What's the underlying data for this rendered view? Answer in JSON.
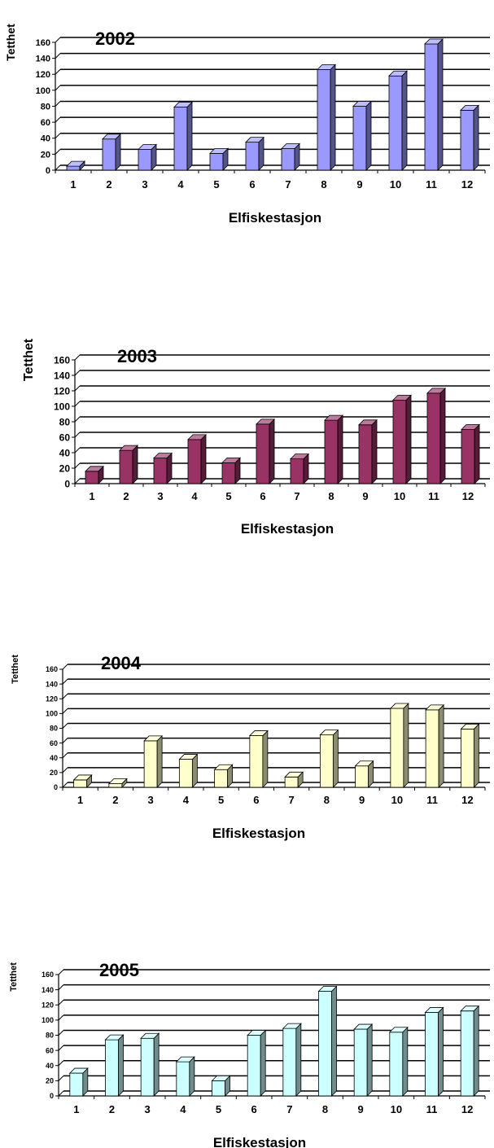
{
  "chart_data": [
    {
      "type": "bar",
      "title": "2002",
      "ylabel": "Tetthet",
      "xlabel": "Elfiskestasjon",
      "ylim": [
        0,
        160
      ],
      "yticks": [
        "0",
        "20",
        "40",
        "60",
        "80",
        "100",
        "120",
        "140",
        "160"
      ],
      "categories": [
        "1",
        "2",
        "3",
        "4",
        "5",
        "6",
        "7",
        "8",
        "9",
        "10",
        "11",
        "12"
      ],
      "values": [
        5,
        39,
        26,
        79,
        21,
        35,
        27,
        126,
        80,
        118,
        158,
        75
      ],
      "grid": true,
      "legend": "none",
      "color": "#9999ff"
    },
    {
      "type": "bar",
      "title": "2003",
      "ylabel": "Tetthet",
      "xlabel": "Elfiskestasjon",
      "ylim": [
        0,
        160
      ],
      "yticks": [
        "0",
        "20",
        "40",
        "60",
        "80",
        "100",
        "120",
        "140",
        "160"
      ],
      "categories": [
        "1",
        "2",
        "3",
        "4",
        "5",
        "6",
        "7",
        "8",
        "9",
        "10",
        "11",
        "12"
      ],
      "values": [
        16,
        43,
        33,
        57,
        27,
        77,
        32,
        82,
        76,
        108,
        117,
        70
      ],
      "grid": true,
      "legend": "none",
      "color": "#993366"
    },
    {
      "type": "bar",
      "title": "2004",
      "ylabel": "Tetthet",
      "xlabel": "Elfiskestasjon",
      "ylim": [
        0,
        160
      ],
      "yticks": [
        "0",
        "20",
        "40",
        "60",
        "80",
        "100",
        "120",
        "140",
        "160"
      ],
      "categories": [
        "1",
        "2",
        "3",
        "4",
        "5",
        "6",
        "7",
        "8",
        "9",
        "10",
        "11",
        "12"
      ],
      "values": [
        10,
        5,
        63,
        38,
        24,
        70,
        14,
        71,
        29,
        107,
        105,
        79
      ],
      "grid": true,
      "legend": "none",
      "color": "#ffffcc"
    },
    {
      "type": "bar",
      "title": "2005",
      "ylabel": "Tetthet",
      "xlabel": "Elfiskestasjon",
      "ylim": [
        0,
        160
      ],
      "yticks": [
        "0",
        "20",
        "40",
        "60",
        "80",
        "100",
        "120",
        "140",
        "160"
      ],
      "categories": [
        "1",
        "2",
        "3",
        "4",
        "5",
        "6",
        "7",
        "8",
        "9",
        "10",
        "11",
        "12"
      ],
      "values": [
        30,
        74,
        76,
        45,
        20,
        80,
        89,
        138,
        88,
        84,
        110,
        112
      ],
      "grid": true,
      "legend": "none",
      "color": "#ccffff"
    }
  ]
}
